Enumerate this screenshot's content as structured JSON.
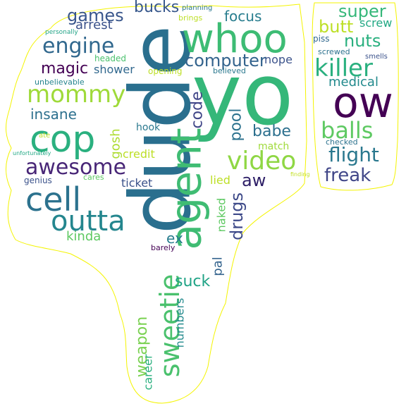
{
  "words": [
    {
      "text": "dude",
      "color": "#2a6f8e"
    },
    {
      "text": "yo",
      "color": "#35b779"
    },
    {
      "text": "whoo",
      "color": "#3dbc74"
    },
    {
      "text": "ow",
      "color": "#440154"
    },
    {
      "text": "agent",
      "color": "#3fbc73"
    },
    {
      "text": "cop",
      "color": "#2ab07f"
    },
    {
      "text": "cell",
      "color": "#2c728e"
    },
    {
      "text": "outta",
      "color": "#24868e"
    },
    {
      "text": "mommy",
      "color": "#9fda3a"
    },
    {
      "text": "awesome",
      "color": "#482677"
    },
    {
      "text": "video",
      "color": "#8fd744"
    },
    {
      "text": "sweetie",
      "color": "#4ac16d"
    },
    {
      "text": "killer",
      "color": "#2ab07f"
    },
    {
      "text": "balls",
      "color": "#5ec962"
    },
    {
      "text": "engine",
      "color": "#31688e"
    },
    {
      "text": "computer",
      "color": "#33638d"
    },
    {
      "text": "flight",
      "color": "#2a788e"
    },
    {
      "text": "freak",
      "color": "#404688"
    },
    {
      "text": "games",
      "color": "#39568c"
    },
    {
      "text": "bucks",
      "color": "#38588c"
    },
    {
      "text": "focus",
      "color": "#287d8e"
    },
    {
      "text": "super",
      "color": "#35b779"
    },
    {
      "text": "butt",
      "color": "#bddf26"
    },
    {
      "text": "screw",
      "color": "#22a884"
    },
    {
      "text": "nuts",
      "color": "#2ab07f"
    },
    {
      "text": "medical",
      "color": "#238a8d"
    },
    {
      "text": "magic",
      "color": "#440154"
    },
    {
      "text": "arrest",
      "color": "#3b528b"
    },
    {
      "text": "shower",
      "color": "#31688e"
    },
    {
      "text": "insane",
      "color": "#2d708e"
    },
    {
      "text": "gosh",
      "color": "#addc30"
    },
    {
      "text": "code",
      "color": "#404688"
    },
    {
      "text": "babe",
      "color": "#2d708e"
    },
    {
      "text": "pool",
      "color": "#2c728e"
    },
    {
      "text": "aw",
      "color": "#2d1e66"
    },
    {
      "text": "drugs",
      "color": "#3e4a89"
    },
    {
      "text": "naked",
      "color": "#5ec962"
    },
    {
      "text": "lied",
      "color": "#bddf26"
    },
    {
      "text": "pal",
      "color": "#33638d"
    },
    {
      "text": "ex",
      "color": "#287d8e"
    },
    {
      "text": "kinda",
      "color": "#5ec962"
    },
    {
      "text": "suck",
      "color": "#20a386"
    },
    {
      "text": "weapon",
      "color": "#7ad151"
    },
    {
      "text": "career",
      "color": "#2ab07f"
    },
    {
      "text": "numbers",
      "color": "#238a8d"
    },
    {
      "text": "ticket",
      "color": "#3b528b"
    },
    {
      "text": "credit",
      "color": "#bddf26"
    },
    {
      "text": "hook",
      "color": "#2a788e"
    },
    {
      "text": "match",
      "color": "#9fda3a"
    },
    {
      "text": "nope",
      "color": "#3b528b"
    },
    {
      "text": "opening",
      "color": "#bddf26"
    },
    {
      "text": "believed",
      "color": "#2a788e"
    },
    {
      "text": "headed",
      "color": "#4ac16d"
    },
    {
      "text": "unbelievable",
      "color": "#25848e"
    },
    {
      "text": "personally",
      "color": "#20a386"
    },
    {
      "text": "planning",
      "color": "#2a788e"
    },
    {
      "text": "brings",
      "color": "#bddf26"
    },
    {
      "text": "piss",
      "color": "#31688e"
    },
    {
      "text": "screwed",
      "color": "#2c728e"
    },
    {
      "text": "smells",
      "color": "#3b528b"
    },
    {
      "text": "checked",
      "color": "#2c728e"
    },
    {
      "text": "genius",
      "color": "#3b528b"
    },
    {
      "text": "cares",
      "color": "#5ec962"
    },
    {
      "text": "barely",
      "color": "#440154"
    },
    {
      "text": "ate",
      "color": "#bddf26"
    },
    {
      "text": "unfortunately",
      "color": "#22a884"
    },
    {
      "text": "finding",
      "color": "#c2df23"
    }
  ]
}
